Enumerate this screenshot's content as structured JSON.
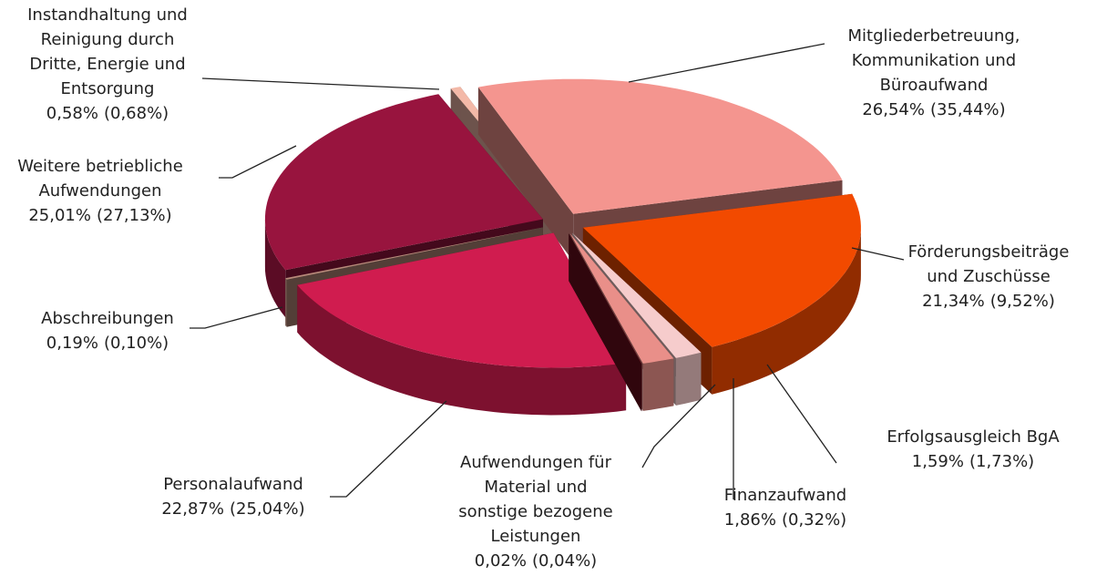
{
  "chart_data": {
    "type": "pie3d",
    "categories": [
      "Mitgliederbetreuung,\nKommunikation und\nBüroaufwand",
      "Förderungsbeiträge\nund Zuschüsse",
      "Erfolgsausgleich BgA",
      "Finanzaufwand",
      "Aufwendungen für\nMaterial und\nsonstige bezogene\nLeistungen",
      "Personalaufwand",
      "Abschreibungen",
      "Weitere betriebliche\nAufwendungen",
      "Instandhaltung und\nReinigung durch\nDritte, Energie und\nEntsorgung"
    ],
    "values": [
      26.54,
      21.34,
      1.59,
      1.86,
      0.02,
      22.87,
      0.19,
      25.01,
      0.58
    ],
    "value_labels": [
      "26,54%",
      "21,34%",
      "1,59%",
      "1,86%",
      "0,02%",
      "22,87%",
      "0,19%",
      "25,01%",
      "0,58%"
    ],
    "previous_labels": [
      "(35,44%)",
      "(9,52%)",
      "(1,73%)",
      "(0,32%)",
      "(0,04%)",
      "(25,04%)",
      "(0,10%)",
      "(27,13%)",
      "(0,68%)"
    ],
    "colors": [
      "#f4958f",
      "#f24a00",
      "#f6cccc",
      "#e98f89",
      "#6b0d1c",
      "#d01c4f",
      "#b98a7b",
      "#98143e",
      "#f3b9a8"
    ]
  }
}
